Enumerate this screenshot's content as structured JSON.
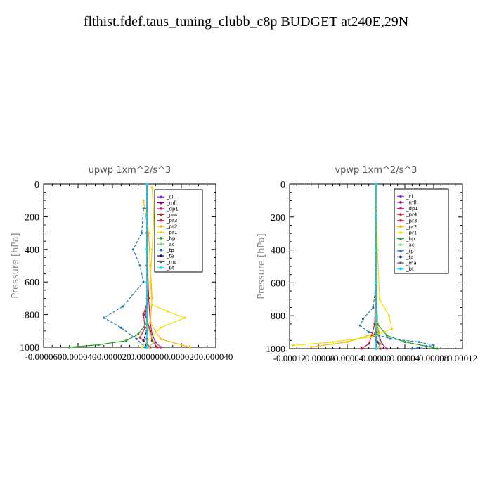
{
  "title": "flthist.fdef.taus_tuning_clubb_c8p  BUDGET at240E,29N",
  "colors": {
    "_cl": "#8a2be2",
    "_mfl": "#800080",
    "_dp1": "#c71585",
    "_pr4": "#b22222",
    "_pr3": "#dc143c",
    "_pr2": "#ffb300",
    "_pr1": "#f0e000",
    "_bp": "#1ea01e",
    "_ac": "#7fd46a",
    "_tp": "#1e78b4",
    "_ta": "#101060",
    "_ma": "#606060",
    "_bt": "#00e5ff"
  },
  "chart_data": [
    {
      "type": "line",
      "title": "upwp   1xm^2/s^3",
      "ylabel": "Pressure [hPa]",
      "ylim": [
        1000,
        0
      ],
      "xlim": [
        -6e-05,
        4e-05
      ],
      "yticks": [
        "0",
        "200",
        "400",
        "600",
        "800",
        "1000"
      ],
      "xticks": [
        "-0.000060",
        "-0.000040",
        "-0.000020",
        "0.000000",
        "0.000020",
        "0.000040"
      ],
      "legend": [
        "_cl",
        "_mfl",
        "_dp1",
        "_pr4",
        "_pr3",
        "_pr2",
        "_pr1",
        "_bp",
        "_ac",
        "_tp",
        "_ta",
        "_ma",
        "_bt"
      ],
      "series": [
        {
          "name": "_cl",
          "x": [
            0,
            0,
            0,
            0,
            0,
            0,
            0,
            0
          ],
          "y": [
            0,
            150,
            300,
            500,
            700,
            850,
            950,
            1000
          ]
        },
        {
          "name": "_mfl",
          "x": [
            0,
            0,
            0,
            0,
            0,
            0,
            0,
            0
          ],
          "y": [
            0,
            150,
            300,
            500,
            700,
            850,
            950,
            1000
          ]
        },
        {
          "name": "_dp1",
          "x": [
            0,
            0,
            1e-06,
            2e-06,
            3e-06,
            5e-06,
            8e-06
          ],
          "y": [
            0,
            400,
            700,
            850,
            920,
            970,
            1000
          ]
        },
        {
          "name": "_pr4",
          "x": [
            0,
            0,
            1e-06,
            -1e-06,
            2e-06,
            3e-06,
            6e-06
          ],
          "y": [
            0,
            400,
            700,
            800,
            900,
            960,
            1000
          ]
        },
        {
          "name": "_pr3",
          "x": [
            0,
            0,
            1e-06,
            -2e-06,
            -1e-06,
            -4e-06,
            2e-06
          ],
          "y": [
            0,
            400,
            700,
            800,
            880,
            940,
            1000
          ]
        },
        {
          "name": "_pr2",
          "x": [
            -2e-06,
            1e-06,
            2e-06,
            3e-06,
            2e-06,
            8e-06,
            2.5e-05
          ],
          "y": [
            100,
            300,
            500,
            700,
            850,
            950,
            1000
          ]
        },
        {
          "name": "_pr1",
          "x": [
            3e-06,
            4e-06,
            3e-06,
            2e-06,
            3e-06,
            1.2e-05,
            2.2e-05,
            8e-06,
            -3e-06
          ],
          "y": [
            20,
            200,
            400,
            600,
            740,
            780,
            820,
            880,
            1000
          ]
        },
        {
          "name": "_bp",
          "x": [
            0,
            0,
            0,
            0,
            -5e-06,
            -1.2e-05,
            -2.8e-05,
            -4.5e-05
          ],
          "y": [
            0,
            400,
            700,
            850,
            920,
            960,
            985,
            1000
          ]
        },
        {
          "name": "_ac",
          "x": [
            0,
            0,
            0,
            0,
            2e-06,
            4e-06,
            1e-06
          ],
          "y": [
            0,
            400,
            700,
            850,
            920,
            970,
            1000
          ]
        },
        {
          "name": "_tp",
          "x": [
            -2e-06,
            -3e-06,
            -8e-06,
            -4e-06,
            -2e-06,
            -1.4e-05,
            -2.5e-05,
            -1.5e-05,
            -6e-06,
            -1e-06
          ],
          "y": [
            150,
            300,
            400,
            500,
            600,
            750,
            820,
            880,
            950,
            1000
          ]
        },
        {
          "name": "_ta",
          "x": [
            0,
            0,
            0,
            0,
            0,
            0,
            -2e-06,
            0
          ],
          "y": [
            0,
            200,
            400,
            600,
            800,
            900,
            960,
            1000
          ]
        },
        {
          "name": "_ma",
          "x": [
            0,
            0,
            0,
            0,
            0,
            0,
            0
          ],
          "y": [
            0,
            200,
            400,
            600,
            800,
            900,
            1000
          ]
        },
        {
          "name": "_bt",
          "x": [
            0,
            0,
            0,
            0,
            0,
            0
          ],
          "y": [
            0,
            200,
            400,
            600,
            800,
            1000
          ]
        }
      ]
    },
    {
      "type": "line",
      "title": "vpwp   1xm^2/s^3",
      "ylabel": "Pressure [hPa]",
      "ylim": [
        1000,
        0
      ],
      "xlim": [
        -0.00012,
        0.00012
      ],
      "yticks": [
        "0",
        "200",
        "400",
        "600",
        "800",
        "1000"
      ],
      "xticks": [
        "-0.00012",
        "-0.00008",
        "-0.00004",
        "0.00000",
        "0.00004",
        "0.00008",
        "0.00012"
      ],
      "legend": [
        "_cl",
        "_mfl",
        "_dp1",
        "_pr4",
        "_pr3",
        "_pr2",
        "_pr1",
        "_bp",
        "_ac",
        "_tp",
        "_ta",
        "_ma",
        "_bt"
      ],
      "series": [
        {
          "name": "_cl",
          "x": [
            0,
            0,
            0,
            0,
            0,
            0,
            0,
            0
          ],
          "y": [
            0,
            150,
            300,
            500,
            700,
            850,
            950,
            1000
          ]
        },
        {
          "name": "_mfl",
          "x": [
            0,
            0,
            0,
            0,
            0,
            0,
            0,
            0
          ],
          "y": [
            0,
            150,
            300,
            500,
            700,
            850,
            950,
            1000
          ]
        },
        {
          "name": "_dp1",
          "x": [
            0,
            0,
            2e-06,
            4e-06,
            8e-06,
            1.5e-05
          ],
          "y": [
            0,
            600,
            850,
            920,
            970,
            1000
          ]
        },
        {
          "name": "_pr4",
          "x": [
            0,
            0,
            2e-06,
            -3e-06,
            4e-06,
            6e-06
          ],
          "y": [
            0,
            600,
            850,
            920,
            970,
            1000
          ]
        },
        {
          "name": "_pr3",
          "x": [
            0,
            0,
            -2e-06,
            -6e-06,
            -1e-05,
            -2e-05
          ],
          "y": [
            0,
            600,
            850,
            920,
            970,
            1000
          ]
        },
        {
          "name": "_pr2",
          "x": [
            0,
            0,
            0,
            4e-06,
            -4e-05,
            -9e-05
          ],
          "y": [
            0,
            600,
            800,
            900,
            960,
            990
          ]
        },
        {
          "name": "_pr1",
          "x": [
            0,
            2e-06,
            5e-06,
            1.8e-05,
            2.2e-05,
            -8e-06,
            -6e-05,
            -0.000115
          ],
          "y": [
            0,
            400,
            700,
            800,
            880,
            930,
            960,
            980
          ]
        },
        {
          "name": "_bp",
          "x": [
            0,
            0,
            2e-06,
            1.5e-05,
            4e-05,
            7e-05,
            8.5e-05
          ],
          "y": [
            0,
            600,
            850,
            920,
            960,
            985,
            1000
          ]
        },
        {
          "name": "_ac",
          "x": [
            0,
            0,
            0,
            3e-06,
            6e-06,
            2e-06
          ],
          "y": [
            0,
            600,
            850,
            920,
            970,
            1000
          ]
        },
        {
          "name": "_tp",
          "x": [
            0,
            -4e-06,
            -1.8e-05,
            -2.2e-05,
            -1e-05,
            2e-05,
            6e-05,
            8e-05,
            5e-05
          ],
          "y": [
            600,
            750,
            820,
            860,
            900,
            940,
            960,
            980,
            1000
          ]
        },
        {
          "name": "_ta",
          "x": [
            0,
            0,
            0,
            0,
            2e-06,
            0
          ],
          "y": [
            0,
            400,
            800,
            900,
            960,
            1000
          ]
        },
        {
          "name": "_ma",
          "x": [
            0,
            0,
            0,
            0,
            0,
            0
          ],
          "y": [
            0,
            200,
            400,
            600,
            800,
            1000
          ]
        },
        {
          "name": "_bt",
          "x": [
            0,
            0,
            0,
            0,
            0,
            0
          ],
          "y": [
            0,
            200,
            400,
            600,
            800,
            1000
          ]
        }
      ]
    }
  ]
}
